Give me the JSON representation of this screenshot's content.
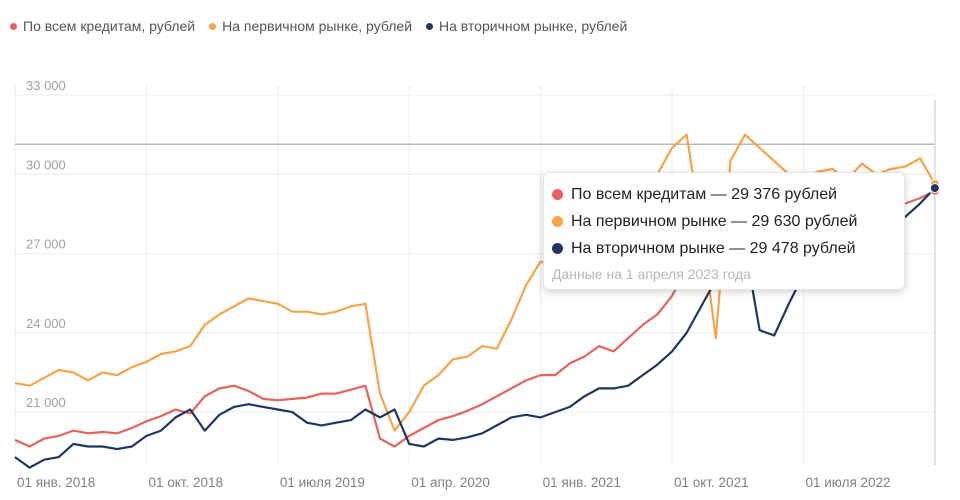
{
  "legend": {
    "items": [
      {
        "label": "По всем кредитам, рублей",
        "color": "#e8615c"
      },
      {
        "label": "На первичном рынке, рублей",
        "color": "#f7a347"
      },
      {
        "label": "На вторичном рынке, рублей",
        "color": "#1f3562"
      }
    ]
  },
  "tooltip": {
    "rows": [
      {
        "text": "По всем кредитам — 29 376 рублей",
        "color": "#e8615c"
      },
      {
        "text": "На первичном рынке — 29 630 рублей",
        "color": "#f7a347"
      },
      {
        "text": "На вторичном рынке — 29 478 рублей",
        "color": "#1f3562"
      }
    ],
    "note": "Данные на 1 апреля 2023 года"
  },
  "chart_data": {
    "type": "line",
    "title": "",
    "xlabel": "",
    "ylabel": "",
    "ylim": [
      19000,
      33000
    ],
    "yticks": [
      21000,
      24000,
      27000,
      30000,
      33000
    ],
    "ytick_labels": [
      "21 000",
      "24 000",
      "27 000",
      "30 000",
      "33 000"
    ],
    "x_ticks": [
      {
        "index": 0,
        "label": "01 янв. 2018"
      },
      {
        "index": 9,
        "label": "01 окт. 2018"
      },
      {
        "index": 18,
        "label": "01 июля 2019"
      },
      {
        "index": 27,
        "label": "01 апр. 2020"
      },
      {
        "index": 36,
        "label": "01 янв. 2021"
      },
      {
        "index": 45,
        "label": "01 окт. 2021"
      },
      {
        "index": 54,
        "label": "01 июля 2022"
      }
    ],
    "x_start_offset": -0.1,
    "reference_line": 30000,
    "highlight_index": 63,
    "series": [
      {
        "name": "По всем кредитам, рублей",
        "color": "#e8615c",
        "values": [
          19950,
          19700,
          20000,
          20100,
          20300,
          20200,
          20250,
          20200,
          20400,
          20650,
          20850,
          21100,
          20950,
          21600,
          21900,
          22000,
          21800,
          21500,
          21450,
          21500,
          21550,
          21700,
          21700,
          21850,
          22000,
          20000,
          19700,
          20100,
          20400,
          20700,
          20850,
          21050,
          21300,
          21600,
          21900,
          22200,
          22400,
          22400,
          22850,
          23100,
          23500,
          23300,
          23800,
          24300,
          24700,
          25400,
          26400,
          27100,
          27300,
          27500,
          27700,
          27800,
          27900,
          28100,
          28200,
          28300,
          28400,
          28500,
          28600,
          28700,
          28800,
          28900,
          29100,
          29376
        ]
      },
      {
        "name": "На первичном рынке, рублей",
        "color": "#f7a347",
        "values": [
          22100,
          22000,
          22300,
          22600,
          22500,
          22200,
          22500,
          22400,
          22700,
          22900,
          23200,
          23300,
          23500,
          24300,
          24700,
          25000,
          25300,
          25200,
          25100,
          24800,
          24800,
          24700,
          24800,
          25000,
          25100,
          21700,
          20300,
          21000,
          22000,
          22400,
          23000,
          23100,
          23500,
          23400,
          24500,
          25800,
          26700,
          26500,
          27100,
          27800,
          28200,
          28800,
          29100,
          29300,
          30000,
          31000,
          31500,
          28000,
          23800,
          30500,
          31500,
          31000,
          30500,
          30000,
          29900,
          30100,
          30200,
          29800,
          30400,
          30000,
          30200,
          30300,
          30600,
          29630
        ]
      },
      {
        "name": "На вторичном рынке, рублей",
        "color": "#1f3562",
        "values": [
          19300,
          18900,
          19200,
          19300,
          19800,
          19700,
          19700,
          19600,
          19700,
          20100,
          20300,
          20800,
          21100,
          20300,
          20900,
          21200,
          21300,
          21200,
          21100,
          21000,
          20600,
          20500,
          20600,
          20700,
          21100,
          20800,
          21100,
          19800,
          19700,
          20000,
          19950,
          20050,
          20200,
          20500,
          20800,
          20900,
          20800,
          21000,
          21200,
          21600,
          21900,
          21900,
          22000,
          22400,
          22800,
          23300,
          24000,
          25000,
          26000,
          25800,
          27300,
          24100,
          23900,
          25100,
          26200,
          27000,
          27300,
          27500,
          27600,
          27700,
          28000,
          28400,
          28900,
          29478
        ]
      }
    ]
  }
}
